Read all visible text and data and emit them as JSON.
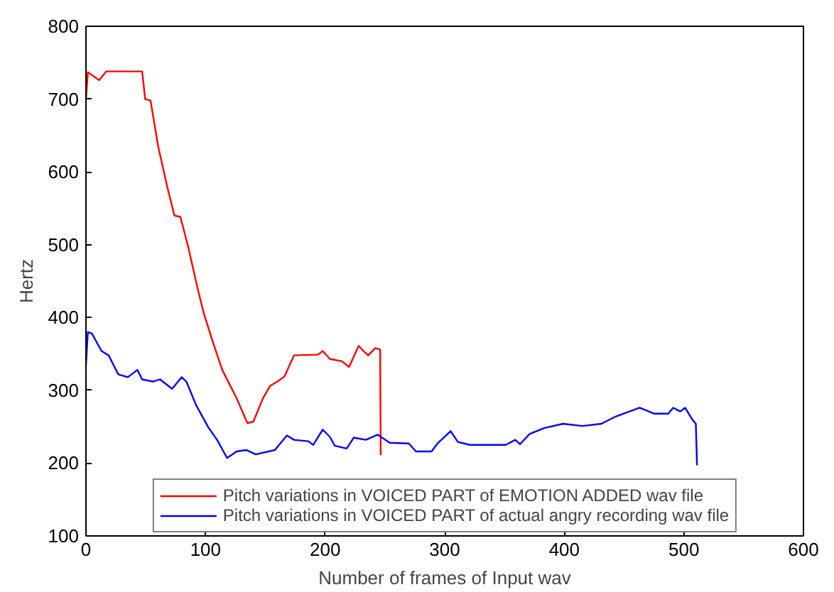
{
  "chart_data": {
    "type": "line",
    "xlabel": "Number of frames of Input wav",
    "ylabel": "Hertz",
    "xlim": [
      0,
      600
    ],
    "ylim": [
      100,
      800
    ],
    "xticks": [
      0,
      100,
      200,
      300,
      400,
      500,
      600
    ],
    "yticks": [
      100,
      200,
      300,
      400,
      500,
      600,
      700,
      800
    ],
    "grid": false,
    "legend": "bottom",
    "marker": "none",
    "line_style": "solid",
    "series": [
      {
        "name": "Pitch variations in VOICED PART of EMOTION ADDED wav file",
        "color": "#ff0000",
        "x": [
          0,
          1.6,
          11,
          17,
          47,
          49.5,
          54,
          60.5,
          68.5,
          74,
          79,
          85.5,
          93.5,
          98.5,
          106,
          114,
          126,
          135,
          140,
          148,
          154,
          160,
          166,
          174,
          194,
          198,
          204,
          214,
          220,
          228,
          232,
          236,
          242,
          246,
          246.5
        ],
        "values": [
          699,
          737,
          726,
          738,
          738,
          700,
          698,
          634,
          576,
          540,
          538,
          497,
          439,
          406,
          367,
          328,
          289,
          255,
          257,
          289,
          306,
          312,
          319,
          348,
          349,
          354,
          343,
          340,
          332,
          361,
          354,
          348,
          358,
          356,
          211
        ]
      },
      {
        "name": "Pitch variations in VOICED PART of actual angry recording wav file",
        "color": "#0000ff",
        "x": [
          0,
          1.6,
          5,
          13,
          19,
          27,
          35,
          43,
          47,
          56,
          62,
          72,
          80,
          84,
          92,
          102,
          110,
          118,
          126,
          134,
          142,
          158,
          168,
          174,
          186,
          190,
          198,
          204,
          208,
          218,
          224,
          234,
          244,
          254,
          270,
          276,
          289,
          294,
          305,
          311,
          321,
          351,
          359,
          363,
          371,
          383,
          399,
          415,
          431,
          443,
          463,
          475,
          487,
          491,
          497,
          501,
          507,
          510,
          511
        ],
        "values": [
          335,
          380,
          378,
          354,
          348,
          322,
          318,
          328,
          315,
          312,
          315,
          302,
          318,
          312,
          280,
          250,
          231,
          207,
          216,
          218,
          212,
          218,
          238,
          232,
          230,
          225,
          246,
          236,
          224,
          220,
          235,
          232,
          239,
          228,
          227,
          216,
          216,
          227,
          244,
          229,
          225,
          225,
          232,
          226,
          240,
          248,
          254,
          251,
          254,
          264,
          276,
          268,
          268,
          276,
          271,
          276,
          260,
          254,
          197
        ]
      }
    ]
  }
}
